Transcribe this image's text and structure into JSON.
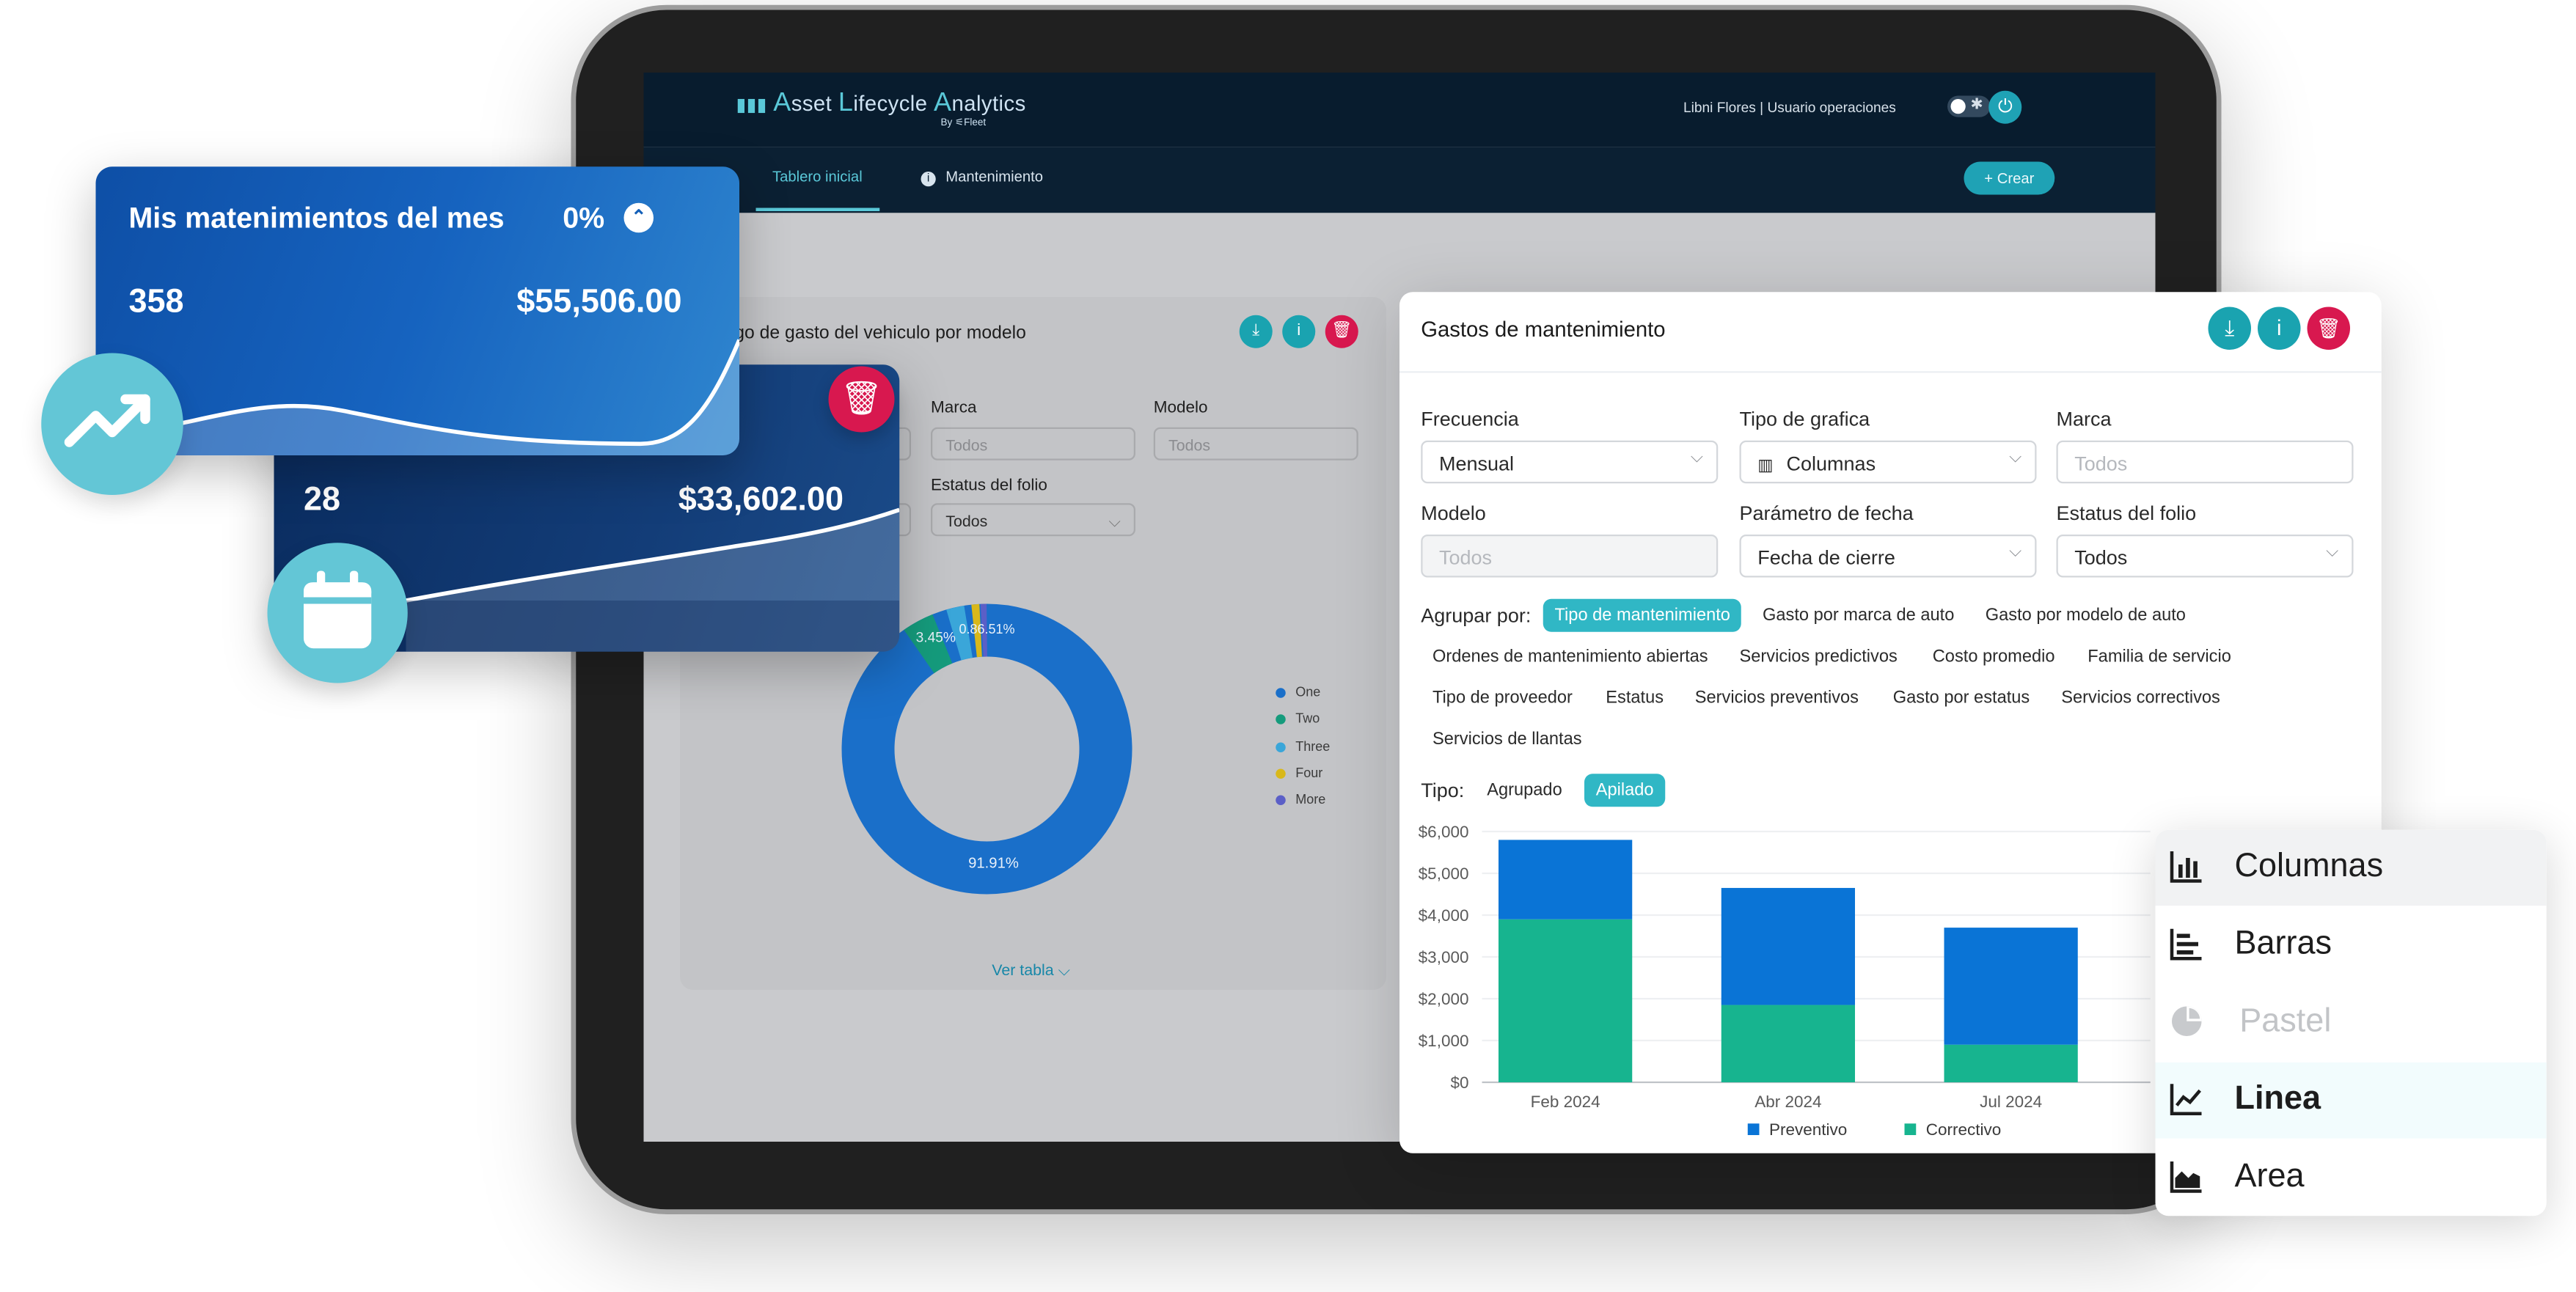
{
  "app": {
    "logo_text_a": "A",
    "logo_text_b": "sset ",
    "logo_text_c": "L",
    "logo_text_d": "ifecycle ",
    "logo_text_e": "A",
    "logo_text_f": "nalytics",
    "logo_by": "By ⚟Fleet",
    "user": "Libni Flores | Usuario operaciones",
    "nav": [
      {
        "label": "Tablero inicial"
      },
      {
        "label": "Mantenimiento"
      }
    ],
    "create_label": "+ Crear"
  },
  "bg_panel": {
    "title": "go de gasto del vehiculo por modelo",
    "fields": {
      "marca_label": "Marca",
      "marca_value": "Todos",
      "modelo_label": "Modelo",
      "modelo_value": "Todos",
      "estatus_label": "Estatus del folio",
      "estatus_value": "Todos"
    },
    "donut_labels": {
      "big": "91.91%",
      "small": "3.45%",
      "tiny": "0.86.51%"
    },
    "legend": [
      "One",
      "Two",
      "Three",
      "Four",
      "More"
    ],
    "legend_colors": [
      "#1a6fc9",
      "#159b7c",
      "#3aa6d9",
      "#d9b81a",
      "#5b5fc7"
    ],
    "view_table": "Ver tabla"
  },
  "front_panel": {
    "title": "Gastos de mantenimiento",
    "fields": [
      {
        "label": "Frecuencia",
        "value": "Mensual",
        "state": "value"
      },
      {
        "label": "Tipo de grafica",
        "value": "Columnas",
        "state": "value"
      },
      {
        "label": "Marca",
        "value": "Todos",
        "state": "placeholder"
      },
      {
        "label": "Modelo",
        "value": "Todos",
        "state": "disabled"
      },
      {
        "label": "Parámetro de fecha",
        "value": "Fecha de cierre",
        "state": "value"
      },
      {
        "label": "Estatus del folio",
        "value": "Todos",
        "state": "value"
      }
    ],
    "group_label": "Agrupar por:",
    "group_chips": [
      "Tipo de mantenimiento",
      "Gasto por marca de auto",
      "Gasto por modelo de auto",
      "Ordenes de mantenimiento abiertas",
      "Servicios predictivos",
      "Costo promedio",
      "Familia de servicio",
      "Tipo de proveedor",
      "Estatus",
      "Servicios preventivos",
      "Gasto por estatus",
      "Servicios correctivos",
      "Servicios de llantas"
    ],
    "type_label": "Tipo:",
    "type_chips": [
      "Agrupado",
      "Apilado"
    ]
  },
  "chart_data": {
    "type": "bar",
    "stacked": true,
    "categories": [
      "Feb 2024",
      "Abr 2024",
      "Jul 2024"
    ],
    "series": [
      {
        "name": "Preventivo",
        "color": "#0a74d6",
        "values": [
          1900,
          2800,
          2800
        ]
      },
      {
        "name": "Correctivo",
        "color": "#17b48f",
        "values": [
          3900,
          1850,
          900
        ]
      }
    ],
    "y_ticks": [
      "$0",
      "$1,000",
      "$2,000",
      "$3,000",
      "$4,000",
      "$5,000",
      "$6,000"
    ],
    "ylim": [
      0,
      6000
    ],
    "legend_position": "bottom"
  },
  "dropdown": {
    "items": [
      {
        "label": "Columnas",
        "icon": "column-chart-icon",
        "state": "hover"
      },
      {
        "label": "Barras",
        "icon": "bar-chart-icon",
        "state": "normal"
      },
      {
        "label": "Pastel",
        "icon": "pie-chart-icon",
        "state": "disabled"
      },
      {
        "label": "Linea",
        "icon": "line-chart-icon",
        "state": "selected"
      },
      {
        "label": "Area",
        "icon": "area-chart-icon",
        "state": "normal"
      }
    ]
  },
  "card_month": {
    "title": "Mis matenimientos del mes",
    "percent": "0%",
    "count": "358",
    "amount": "$55,506.00"
  },
  "card_second": {
    "count": "28",
    "amount": "$33,602.00"
  }
}
